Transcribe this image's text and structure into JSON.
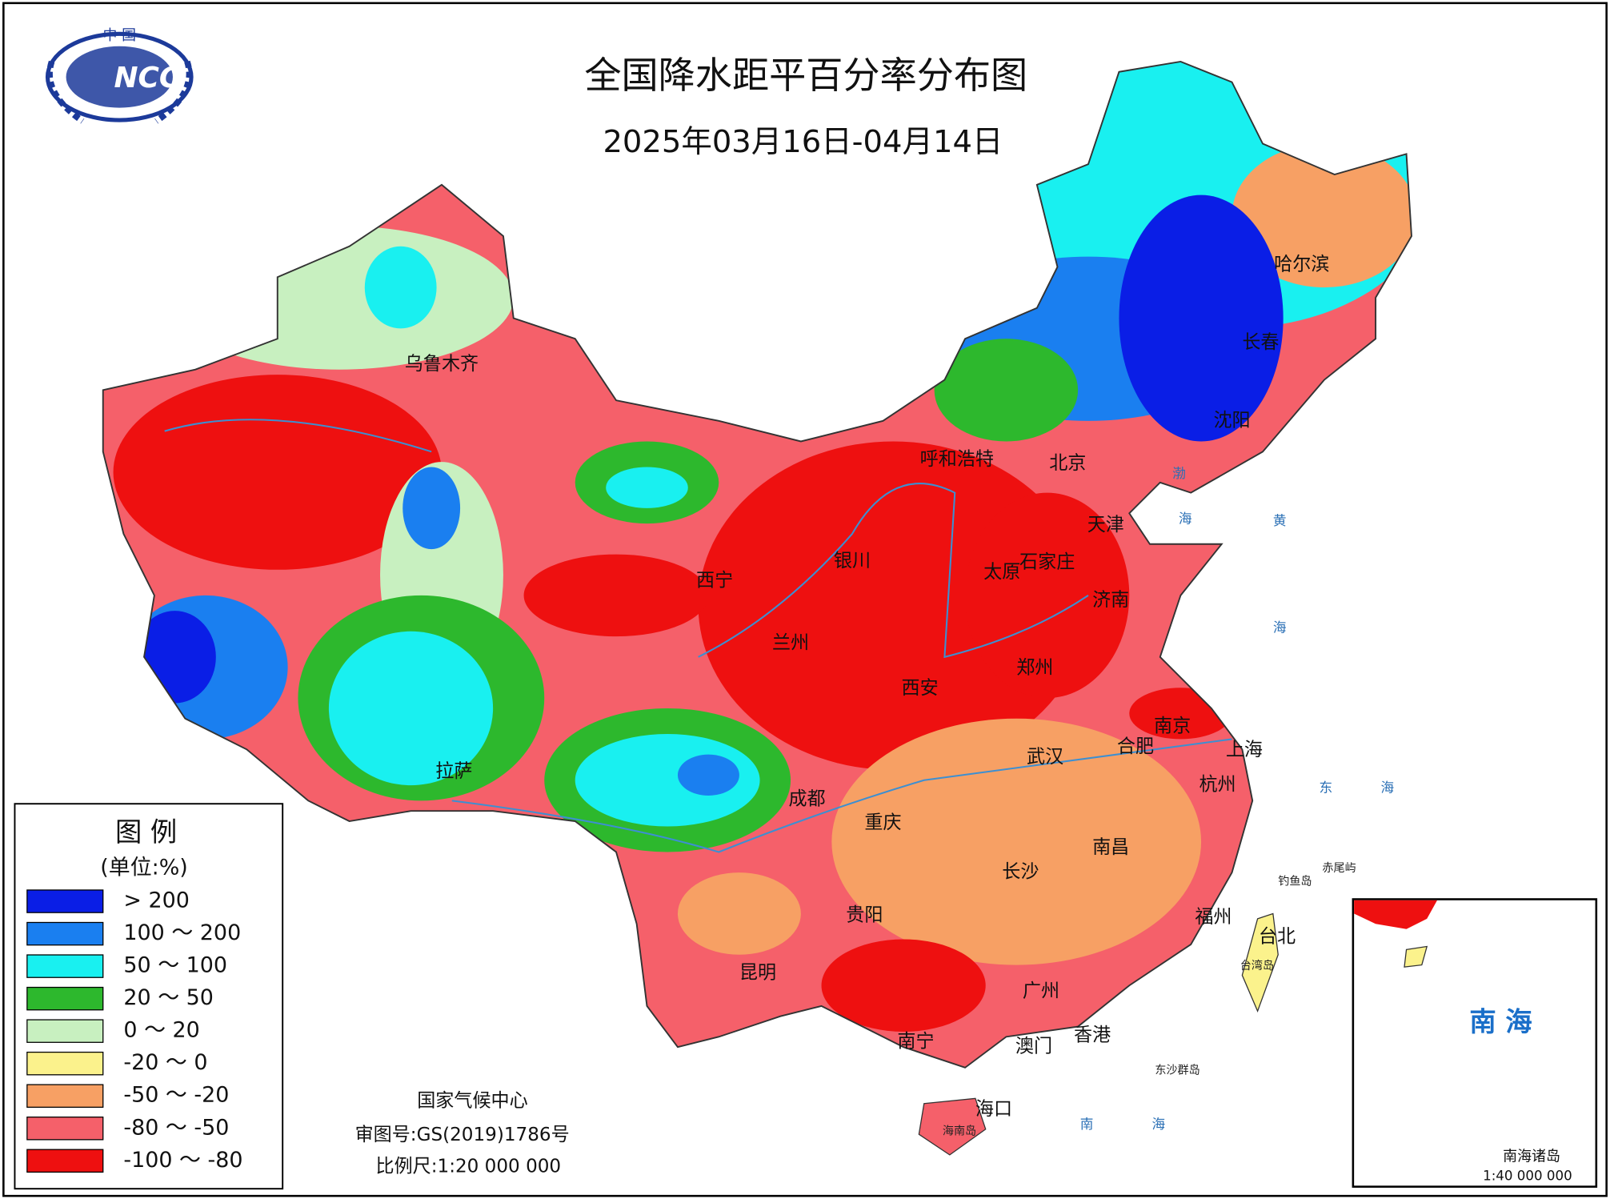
{
  "header": {
    "title": "全国降水距平百分率分布图",
    "subtitle": "2025年03月16日-04月14日",
    "logo": "NCC",
    "logo_top": "中 国"
  },
  "legend": {
    "title": "图 例",
    "unit": "(单位:%)",
    "items": [
      {
        "label": "> 200",
        "color": "#0a1ee6"
      },
      {
        "label": "100 ～ 200",
        "color": "#1a7ff0"
      },
      {
        "label": "50 ～ 100",
        "color": "#19f0f0"
      },
      {
        "label": "20 ～ 50",
        "color": "#2db82d"
      },
      {
        "label": "0 ～ 20",
        "color": "#c8f0c0"
      },
      {
        "label": "-20 ～ 0",
        "color": "#fbf28c"
      },
      {
        "label": "-50 ～ -20",
        "color": "#f7a064"
      },
      {
        "label": "-80 ～ -50",
        "color": "#f5606a"
      },
      {
        "label": "-100 ～ -80",
        "color": "#ee1010"
      }
    ]
  },
  "cities": [
    "乌鲁木齐",
    "哈尔滨",
    "长春",
    "沈阳",
    "呼和浩特",
    "北京",
    "天津",
    "银川",
    "太原",
    "石家庄",
    "西宁",
    "济南",
    "兰州",
    "郑州",
    "西安",
    "南京",
    "合肥",
    "上海",
    "拉萨",
    "武汉",
    "杭州",
    "成都",
    "重庆",
    "南昌",
    "长沙",
    "福州",
    "台北",
    "贵阳",
    "昆明",
    "广州",
    "南宁",
    "澳门",
    "香港",
    "海口"
  ],
  "seas": [
    "渤",
    "海",
    "黄",
    "海",
    "东",
    "海",
    "南",
    "海"
  ],
  "islands": [
    "钓鱼岛",
    "赤尾屿",
    "台湾岛",
    "东沙群岛",
    "海南岛"
  ],
  "footer": {
    "org": "国家气候中心",
    "approval": "审图号:GS(2019)1786号",
    "scale": "比例尺:1:20 000 000"
  },
  "inset": {
    "sea": "南 海",
    "title": "南海诸岛",
    "scale": "1:40 000 000"
  }
}
